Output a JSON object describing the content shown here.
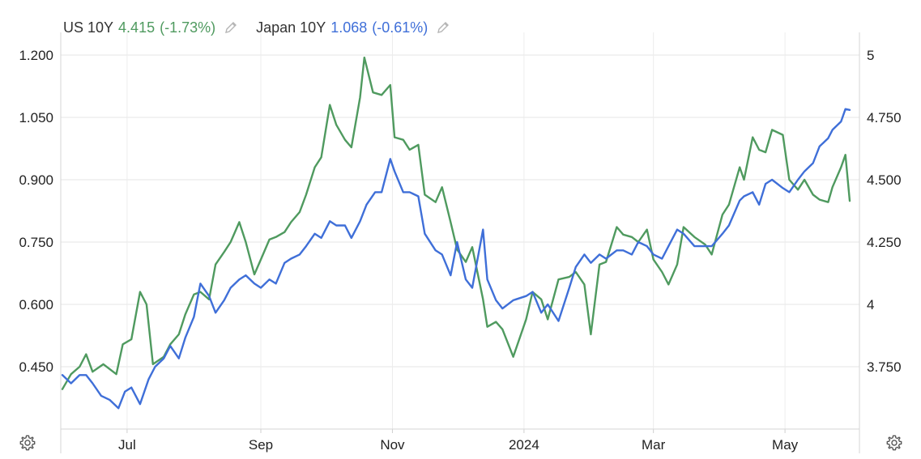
{
  "legend": [
    {
      "name": "US 10Y",
      "value": "4.415",
      "change": "(-1.73%)",
      "color": "#4f9a5f",
      "icon": "pencil-icon"
    },
    {
      "name": "Japan 10Y",
      "value": "1.068",
      "change": "(-0.61%)",
      "color": "#3f6fd8",
      "icon": "pencil-icon"
    }
  ],
  "settings_icons": [
    "gear-icon",
    "gear-icon"
  ],
  "chart_data": {
    "type": "line",
    "title": "",
    "xlabel": "",
    "ylabel": "",
    "grid": true,
    "legend_placement": "top-left",
    "x_ticks": [
      "Jul",
      "Sep",
      "Nov",
      "2024",
      "Mar",
      "May"
    ],
    "x_range": [
      "2023-06-01",
      "2024-05-31"
    ],
    "y_left": {
      "series": "Japan 10Y",
      "range": [
        0.3,
        1.2
      ],
      "ticks": [
        "1.200",
        "1.050",
        "0.900",
        "0.750",
        "0.600",
        "0.450"
      ]
    },
    "y_right": {
      "series": "US 10Y",
      "range": [
        3.5,
        5.0
      ],
      "ticks": [
        "5",
        "4.750",
        "4.500",
        "4.250",
        "4",
        "3.750"
      ]
    },
    "series": [
      {
        "name": "US 10Y",
        "axis": "right",
        "color": "#4f9a5f",
        "points": [
          [
            "2023-06-01",
            3.66
          ],
          [
            "2023-06-05",
            3.72
          ],
          [
            "2023-06-09",
            3.75
          ],
          [
            "2023-06-12",
            3.8
          ],
          [
            "2023-06-15",
            3.73
          ],
          [
            "2023-06-20",
            3.76
          ],
          [
            "2023-06-26",
            3.72
          ],
          [
            "2023-06-29",
            3.84
          ],
          [
            "2023-07-03",
            3.86
          ],
          [
            "2023-07-07",
            4.05
          ],
          [
            "2023-07-10",
            4.0
          ],
          [
            "2023-07-13",
            3.76
          ],
          [
            "2023-07-18",
            3.79
          ],
          [
            "2023-07-21",
            3.84
          ],
          [
            "2023-07-25",
            3.88
          ],
          [
            "2023-07-28",
            3.96
          ],
          [
            "2023-08-01",
            4.04
          ],
          [
            "2023-08-04",
            4.05
          ],
          [
            "2023-08-08",
            4.02
          ],
          [
            "2023-08-11",
            4.16
          ],
          [
            "2023-08-15",
            4.21
          ],
          [
            "2023-08-18",
            4.25
          ],
          [
            "2023-08-22",
            4.33
          ],
          [
            "2023-08-25",
            4.25
          ],
          [
            "2023-08-29",
            4.12
          ],
          [
            "2023-09-01",
            4.18
          ],
          [
            "2023-09-05",
            4.26
          ],
          [
            "2023-09-08",
            4.27
          ],
          [
            "2023-09-12",
            4.29
          ],
          [
            "2023-09-15",
            4.33
          ],
          [
            "2023-09-19",
            4.37
          ],
          [
            "2023-09-22",
            4.44
          ],
          [
            "2023-09-26",
            4.55
          ],
          [
            "2023-09-29",
            4.59
          ],
          [
            "2023-10-03",
            4.8
          ],
          [
            "2023-10-06",
            4.72
          ],
          [
            "2023-10-10",
            4.66
          ],
          [
            "2023-10-13",
            4.63
          ],
          [
            "2023-10-17",
            4.83
          ],
          [
            "2023-10-19",
            4.99
          ],
          [
            "2023-10-23",
            4.85
          ],
          [
            "2023-10-27",
            4.84
          ],
          [
            "2023-10-31",
            4.88
          ],
          [
            "2023-11-02",
            4.67
          ],
          [
            "2023-11-06",
            4.66
          ],
          [
            "2023-11-09",
            4.62
          ],
          [
            "2023-11-13",
            4.64
          ],
          [
            "2023-11-16",
            4.44
          ],
          [
            "2023-11-21",
            4.41
          ],
          [
            "2023-11-24",
            4.47
          ],
          [
            "2023-11-28",
            4.33
          ],
          [
            "2023-12-01",
            4.22
          ],
          [
            "2023-12-05",
            4.17
          ],
          [
            "2023-12-08",
            4.23
          ],
          [
            "2023-12-13",
            4.02
          ],
          [
            "2023-12-15",
            3.91
          ],
          [
            "2023-12-19",
            3.93
          ],
          [
            "2023-12-22",
            3.9
          ],
          [
            "2023-12-27",
            3.79
          ],
          [
            "2024-01-02",
            3.94
          ],
          [
            "2024-01-05",
            4.05
          ],
          [
            "2024-01-09",
            4.02
          ],
          [
            "2024-01-12",
            3.94
          ],
          [
            "2024-01-17",
            4.1
          ],
          [
            "2024-01-22",
            4.11
          ],
          [
            "2024-01-25",
            4.13
          ],
          [
            "2024-01-29",
            4.08
          ],
          [
            "2024-02-01",
            3.88
          ],
          [
            "2024-02-05",
            4.16
          ],
          [
            "2024-02-08",
            4.17
          ],
          [
            "2024-02-13",
            4.31
          ],
          [
            "2024-02-16",
            4.28
          ],
          [
            "2024-02-20",
            4.27
          ],
          [
            "2024-02-23",
            4.25
          ],
          [
            "2024-02-27",
            4.3
          ],
          [
            "2024-03-01",
            4.18
          ],
          [
            "2024-03-05",
            4.13
          ],
          [
            "2024-03-08",
            4.08
          ],
          [
            "2024-03-12",
            4.16
          ],
          [
            "2024-03-15",
            4.31
          ],
          [
            "2024-03-20",
            4.27
          ],
          [
            "2024-03-25",
            4.24
          ],
          [
            "2024-03-28",
            4.2
          ],
          [
            "2024-04-02",
            4.36
          ],
          [
            "2024-04-05",
            4.4
          ],
          [
            "2024-04-10",
            4.55
          ],
          [
            "2024-04-12",
            4.5
          ],
          [
            "2024-04-16",
            4.67
          ],
          [
            "2024-04-19",
            4.62
          ],
          [
            "2024-04-22",
            4.61
          ],
          [
            "2024-04-25",
            4.7
          ],
          [
            "2024-04-30",
            4.68
          ],
          [
            "2024-05-03",
            4.5
          ],
          [
            "2024-05-07",
            4.46
          ],
          [
            "2024-05-10",
            4.5
          ],
          [
            "2024-05-14",
            4.44
          ],
          [
            "2024-05-17",
            4.42
          ],
          [
            "2024-05-21",
            4.41
          ],
          [
            "2024-05-23",
            4.47
          ],
          [
            "2024-05-27",
            4.55
          ],
          [
            "2024-05-29",
            4.6
          ],
          [
            "2024-05-31",
            4.415
          ]
        ]
      },
      {
        "name": "Japan 10Y",
        "axis": "left",
        "color": "#3f6fd8",
        "points": [
          [
            "2023-06-01",
            0.43
          ],
          [
            "2023-06-05",
            0.41
          ],
          [
            "2023-06-09",
            0.43
          ],
          [
            "2023-06-12",
            0.43
          ],
          [
            "2023-06-15",
            0.41
          ],
          [
            "2023-06-19",
            0.38
          ],
          [
            "2023-06-23",
            0.37
          ],
          [
            "2023-06-27",
            0.35
          ],
          [
            "2023-06-30",
            0.39
          ],
          [
            "2023-07-03",
            0.4
          ],
          [
            "2023-07-07",
            0.36
          ],
          [
            "2023-07-11",
            0.42
          ],
          [
            "2023-07-14",
            0.45
          ],
          [
            "2023-07-18",
            0.47
          ],
          [
            "2023-07-21",
            0.5
          ],
          [
            "2023-07-25",
            0.47
          ],
          [
            "2023-07-28",
            0.52
          ],
          [
            "2023-08-01",
            0.57
          ],
          [
            "2023-08-04",
            0.65
          ],
          [
            "2023-08-08",
            0.62
          ],
          [
            "2023-08-11",
            0.58
          ],
          [
            "2023-08-15",
            0.61
          ],
          [
            "2023-08-18",
            0.64
          ],
          [
            "2023-08-22",
            0.66
          ],
          [
            "2023-08-25",
            0.67
          ],
          [
            "2023-08-29",
            0.65
          ],
          [
            "2023-09-01",
            0.64
          ],
          [
            "2023-09-05",
            0.66
          ],
          [
            "2023-09-08",
            0.65
          ],
          [
            "2023-09-12",
            0.7
          ],
          [
            "2023-09-15",
            0.71
          ],
          [
            "2023-09-19",
            0.72
          ],
          [
            "2023-09-22",
            0.74
          ],
          [
            "2023-09-26",
            0.77
          ],
          [
            "2023-09-29",
            0.76
          ],
          [
            "2023-10-03",
            0.8
          ],
          [
            "2023-10-06",
            0.79
          ],
          [
            "2023-10-10",
            0.79
          ],
          [
            "2023-10-13",
            0.76
          ],
          [
            "2023-10-17",
            0.8
          ],
          [
            "2023-10-20",
            0.84
          ],
          [
            "2023-10-24",
            0.87
          ],
          [
            "2023-10-27",
            0.87
          ],
          [
            "2023-10-31",
            0.95
          ],
          [
            "2023-11-02",
            0.92
          ],
          [
            "2023-11-06",
            0.87
          ],
          [
            "2023-11-09",
            0.87
          ],
          [
            "2023-11-13",
            0.86
          ],
          [
            "2023-11-16",
            0.77
          ],
          [
            "2023-11-21",
            0.73
          ],
          [
            "2023-11-24",
            0.72
          ],
          [
            "2023-11-28",
            0.67
          ],
          [
            "2023-12-01",
            0.75
          ],
          [
            "2023-12-05",
            0.66
          ],
          [
            "2023-12-08",
            0.64
          ],
          [
            "2023-12-13",
            0.78
          ],
          [
            "2023-12-15",
            0.66
          ],
          [
            "2023-12-19",
            0.61
          ],
          [
            "2023-12-22",
            0.59
          ],
          [
            "2023-12-27",
            0.61
          ],
          [
            "2024-01-02",
            0.62
          ],
          [
            "2024-01-05",
            0.63
          ],
          [
            "2024-01-09",
            0.58
          ],
          [
            "2024-01-12",
            0.6
          ],
          [
            "2024-01-17",
            0.56
          ],
          [
            "2024-01-22",
            0.64
          ],
          [
            "2024-01-25",
            0.69
          ],
          [
            "2024-01-29",
            0.72
          ],
          [
            "2024-02-01",
            0.7
          ],
          [
            "2024-02-05",
            0.72
          ],
          [
            "2024-02-08",
            0.71
          ],
          [
            "2024-02-13",
            0.73
          ],
          [
            "2024-02-16",
            0.73
          ],
          [
            "2024-02-20",
            0.72
          ],
          [
            "2024-02-23",
            0.75
          ],
          [
            "2024-02-27",
            0.74
          ],
          [
            "2024-03-01",
            0.72
          ],
          [
            "2024-03-05",
            0.71
          ],
          [
            "2024-03-08",
            0.74
          ],
          [
            "2024-03-12",
            0.78
          ],
          [
            "2024-03-15",
            0.77
          ],
          [
            "2024-03-20",
            0.74
          ],
          [
            "2024-03-25",
            0.74
          ],
          [
            "2024-03-28",
            0.74
          ],
          [
            "2024-04-02",
            0.77
          ],
          [
            "2024-04-05",
            0.79
          ],
          [
            "2024-04-10",
            0.85
          ],
          [
            "2024-04-12",
            0.86
          ],
          [
            "2024-04-16",
            0.87
          ],
          [
            "2024-04-19",
            0.84
          ],
          [
            "2024-04-22",
            0.89
          ],
          [
            "2024-04-25",
            0.9
          ],
          [
            "2024-04-30",
            0.88
          ],
          [
            "2024-05-03",
            0.87
          ],
          [
            "2024-05-07",
            0.9
          ],
          [
            "2024-05-10",
            0.92
          ],
          [
            "2024-05-14",
            0.94
          ],
          [
            "2024-05-17",
            0.98
          ],
          [
            "2024-05-21",
            1.0
          ],
          [
            "2024-05-23",
            1.02
          ],
          [
            "2024-05-27",
            1.04
          ],
          [
            "2024-05-29",
            1.07
          ],
          [
            "2024-05-31",
            1.068
          ]
        ]
      }
    ]
  }
}
